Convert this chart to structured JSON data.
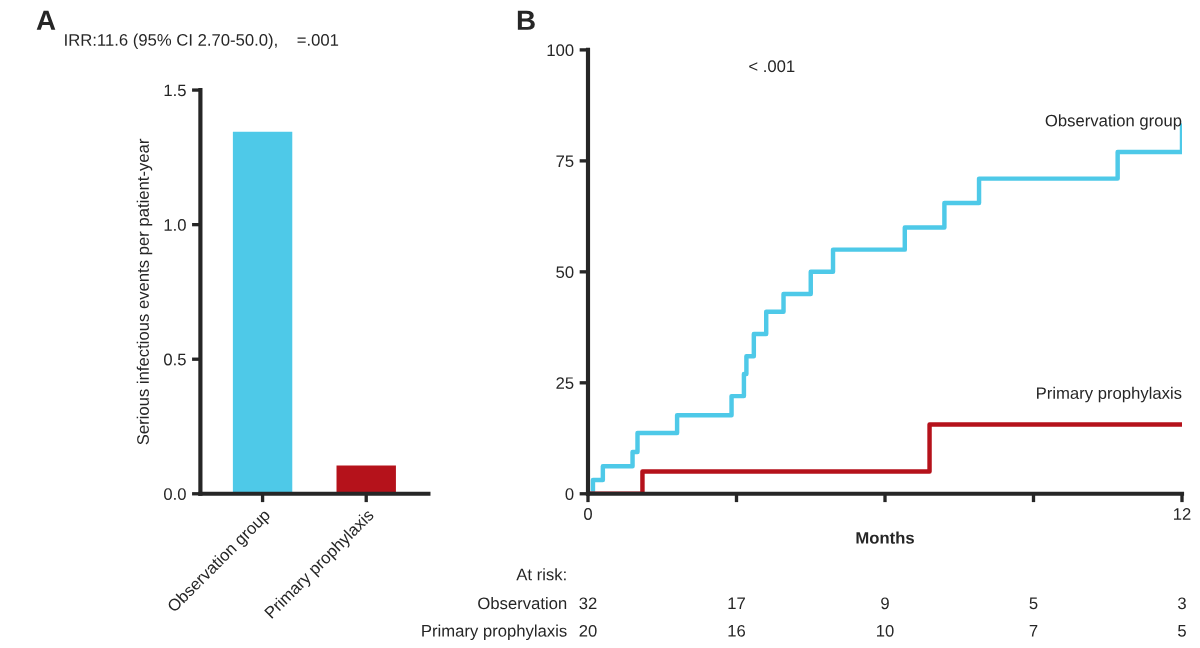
{
  "chart_data": [
    {
      "type": "bar",
      "title": "IRR:11.6 (95% CI 2.70-50.0),    =.001",
      "ylabel": "Serious infectious events per patient-year",
      "annotations": [
        "A"
      ],
      "categories": [
        "Observation group",
        "Primary prophylaxis"
      ],
      "values": [
        1.35,
        0.11
      ],
      "colors": [
        "#4ec9e8",
        "#b5121b"
      ],
      "ylim": [
        0,
        1.5
      ],
      "yticks": [
        {
          "value": 0,
          "label": "0.0"
        },
        0.5,
        {
          "value": 1,
          "label": "1.0"
        },
        1.5
      ],
      "grid": false
    },
    {
      "type": "step",
      "xlabel": "Months",
      "annotations": [
        "B",
        "< .001",
        "At risk:",
        "Observation",
        "32",
        "17",
        "9",
        "5",
        "3",
        "Primary prophylaxis",
        "20",
        "16",
        "10",
        "7",
        "5"
      ],
      "series": [
        {
          "name": "Observation group",
          "color": "#4ec9e8",
          "x": [
            0,
            0.1,
            0.3,
            0.9,
            1.0,
            1.8,
            2.9,
            3.15,
            3.2,
            3.35,
            3.6,
            3.95,
            4.5,
            4.95,
            6.4,
            7.2,
            7.9,
            10.7,
            12,
            12
          ],
          "values": [
            0,
            3.1,
            6.2,
            9.4,
            13.7,
            17.7,
            22,
            27,
            31,
            36,
            41,
            45,
            50,
            55,
            60,
            65.5,
            71,
            77,
            77,
            83
          ]
        },
        {
          "name": "Primary prophylaxis",
          "color": "#b5121b",
          "x": [
            0,
            1.1,
            6.9,
            12
          ],
          "values": [
            0,
            5,
            15.6,
            15.6
          ]
        }
      ],
      "xlim": [
        0,
        12
      ],
      "xticks": [
        0,
        {
          "value": 3,
          "label": null
        },
        {
          "value": 6,
          "label": null
        },
        {
          "value": 9,
          "label": null
        },
        12
      ],
      "ylim": [
        0,
        100
      ],
      "yticks": [
        0,
        25,
        50,
        75,
        100
      ],
      "grid": false
    }
  ]
}
